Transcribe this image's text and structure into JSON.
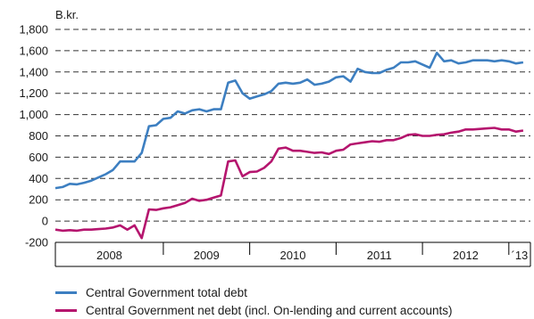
{
  "chart_data": {
    "type": "line",
    "unit_label": "B.kr.",
    "ylim": [
      -200,
      1800
    ],
    "yticks": [
      -200,
      0,
      200,
      400,
      600,
      800,
      1000,
      1200,
      1400,
      1600,
      1800
    ],
    "ytick_labels": [
      "-200",
      "0",
      "200",
      "400",
      "600",
      "800",
      "1,000",
      "1,200",
      "1,400",
      "1,600",
      "1,800"
    ],
    "x_start": "2007-09",
    "x_end": "2013-03",
    "year_labels": [
      {
        "label": "2008",
        "from": "2007-09",
        "to": "2008-12"
      },
      {
        "label": "2009",
        "from": "2008-12",
        "to": "2009-12"
      },
      {
        "label": "2010",
        "from": "2009-12",
        "to": "2010-12"
      },
      {
        "label": "2011",
        "from": "2010-12",
        "to": "2011-12"
      },
      {
        "label": "2012",
        "from": "2011-12",
        "to": "2012-12"
      },
      {
        "label": "´13",
        "from": "2012-12",
        "to": "2013-03"
      }
    ],
    "grid": "horizontal-dashed",
    "legend_position": "bottom",
    "series": [
      {
        "name": "Central Government total debt",
        "color": "#3d7fc1",
        "x": [
          "2007-09",
          "2007-10",
          "2007-11",
          "2007-12",
          "2008-01",
          "2008-02",
          "2008-03",
          "2008-04",
          "2008-05",
          "2008-06",
          "2008-07",
          "2008-08",
          "2008-09",
          "2008-10",
          "2008-11",
          "2008-12",
          "2009-01",
          "2009-02",
          "2009-03",
          "2009-04",
          "2009-05",
          "2009-06",
          "2009-07",
          "2009-08",
          "2009-09",
          "2009-10",
          "2009-11",
          "2009-12",
          "2010-01",
          "2010-02",
          "2010-03",
          "2010-04",
          "2010-05",
          "2010-06",
          "2010-07",
          "2010-08",
          "2010-09",
          "2010-10",
          "2010-11",
          "2010-12",
          "2011-01",
          "2011-02",
          "2011-03",
          "2011-04",
          "2011-05",
          "2011-06",
          "2011-07",
          "2011-08",
          "2011-09",
          "2011-10",
          "2011-11",
          "2011-12",
          "2012-01",
          "2012-02",
          "2012-03",
          "2012-04",
          "2012-05",
          "2012-06",
          "2012-07",
          "2012-08",
          "2012-09",
          "2012-10",
          "2012-11",
          "2012-12",
          "2013-01",
          "2013-02"
        ],
        "values": [
          310,
          320,
          350,
          345,
          360,
          380,
          410,
          440,
          480,
          560,
          560,
          560,
          640,
          890,
          900,
          960,
          970,
          1030,
          1010,
          1040,
          1050,
          1030,
          1050,
          1050,
          1300,
          1320,
          1200,
          1150,
          1170,
          1190,
          1220,
          1290,
          1300,
          1290,
          1300,
          1330,
          1280,
          1290,
          1310,
          1350,
          1360,
          1310,
          1430,
          1400,
          1390,
          1390,
          1420,
          1440,
          1490,
          1490,
          1500,
          1470,
          1440,
          1580,
          1500,
          1510,
          1480,
          1490,
          1510,
          1510,
          1510,
          1500,
          1510,
          1500,
          1480,
          1490
        ]
      },
      {
        "name": "Central Government net debt (incl. On-lending and current accounts)",
        "color": "#b5156e",
        "x": [
          "2007-09",
          "2007-10",
          "2007-11",
          "2007-12",
          "2008-01",
          "2008-02",
          "2008-03",
          "2008-04",
          "2008-05",
          "2008-06",
          "2008-07",
          "2008-08",
          "2008-09",
          "2008-10",
          "2008-11",
          "2008-12",
          "2009-01",
          "2009-02",
          "2009-03",
          "2009-04",
          "2009-05",
          "2009-06",
          "2009-07",
          "2009-08",
          "2009-09",
          "2009-10",
          "2009-11",
          "2009-12",
          "2010-01",
          "2010-02",
          "2010-03",
          "2010-04",
          "2010-05",
          "2010-06",
          "2010-07",
          "2010-08",
          "2010-09",
          "2010-10",
          "2010-11",
          "2010-12",
          "2011-01",
          "2011-02",
          "2011-03",
          "2011-04",
          "2011-05",
          "2011-06",
          "2011-07",
          "2011-08",
          "2011-09",
          "2011-10",
          "2011-11",
          "2011-12",
          "2012-01",
          "2012-02",
          "2012-03",
          "2012-04",
          "2012-05",
          "2012-06",
          "2012-07",
          "2012-08",
          "2012-09",
          "2012-10",
          "2012-11",
          "2012-12",
          "2013-01",
          "2013-02"
        ],
        "values": [
          -80,
          -90,
          -85,
          -90,
          -80,
          -80,
          -75,
          -70,
          -60,
          -40,
          -80,
          -40,
          -160,
          110,
          105,
          120,
          130,
          150,
          170,
          210,
          190,
          200,
          220,
          240,
          560,
          570,
          420,
          460,
          465,
          500,
          560,
          680,
          690,
          660,
          660,
          650,
          640,
          645,
          630,
          660,
          670,
          720,
          730,
          740,
          750,
          745,
          760,
          760,
          780,
          810,
          815,
          800,
          800,
          810,
          815,
          830,
          840,
          860,
          860,
          865,
          870,
          875,
          860,
          860,
          840,
          850
        ]
      }
    ]
  }
}
